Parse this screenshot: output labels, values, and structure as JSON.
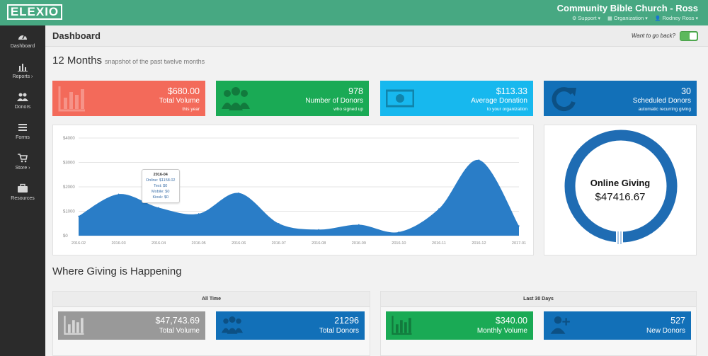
{
  "topbar": {
    "logo": "ELEXIO",
    "org_name": "Community Bible Church - Ross",
    "links": [
      {
        "label": "Support",
        "icon": "gear-icon"
      },
      {
        "label": "Organization",
        "icon": "building-icon"
      },
      {
        "label": "Rodney Ross",
        "icon": "user-icon"
      }
    ]
  },
  "sidebar": {
    "items": [
      {
        "label": "Dashboard",
        "icon": "dashboard-icon"
      },
      {
        "label": "Reports",
        "icon": "bar-chart-icon"
      },
      {
        "label": "Donors",
        "icon": "people-icon"
      },
      {
        "label": "Forms",
        "icon": "list-icon"
      },
      {
        "label": "Store",
        "icon": "cart-icon"
      },
      {
        "label": "Resources",
        "icon": "briefcase-icon"
      }
    ]
  },
  "header": {
    "title": "Dashboard",
    "goback": "Want to go back?"
  },
  "snapshot": {
    "title": "12 Months",
    "subtitle": "snapshot of the past twelve months",
    "cards": [
      {
        "value": "$680.00",
        "label": "Total Volume",
        "note": "this year",
        "color": "#f36a5a",
        "icon": "bar-chart-icon"
      },
      {
        "value": "978",
        "label": "Number of Donors",
        "note": "who signed up",
        "color": "#1aaa55",
        "icon": "people-icon"
      },
      {
        "value": "$113.33",
        "label": "Average Donation",
        "note": "to your organization",
        "color": "#17b8ee",
        "icon": "money-icon"
      },
      {
        "value": "30",
        "label": "Scheduled Donors",
        "note": "automatic recurring giving",
        "color": "#1270b8",
        "icon": "refresh-icon"
      }
    ]
  },
  "chart_data": {
    "type": "area",
    "x": [
      "2016-02",
      "2016-03",
      "2016-04",
      "2016-05",
      "2016-06",
      "2016-07",
      "2016-08",
      "2016-09",
      "2016-10",
      "2016-11",
      "2016-12",
      "2017-01"
    ],
    "series": [
      {
        "values": [
          800,
          1700,
          1150,
          900,
          1750,
          500,
          250,
          450,
          150,
          1100,
          3100,
          400
        ]
      }
    ],
    "y_ticks": [
      "$0",
      "$1000",
      "$2000",
      "$3000",
      "$4000"
    ],
    "ylim": [
      0,
      4000
    ],
    "grid": true,
    "color": "#2a7dc7"
  },
  "tooltip": {
    "title": "2016-04",
    "lines": [
      "Online: $1158.02",
      "Text: $0",
      "Mobile: $0",
      "Kiosk: $0"
    ]
  },
  "donut": {
    "title": "Online Giving",
    "value": "$47416.67",
    "color": "#1f6cb3"
  },
  "where": {
    "title": "Where Giving is Happening",
    "panels": [
      {
        "title": "All Time",
        "cards": [
          {
            "value": "$47,743.69",
            "label": "Total Volume",
            "color": "#999999",
            "icon": "bar-chart-icon"
          },
          {
            "value": "21296",
            "label": "Total Donors",
            "color": "#1270b8",
            "icon": "people-icon"
          }
        ]
      },
      {
        "title": "Last 30 Days",
        "cards": [
          {
            "value": "$340.00",
            "label": "Monthly Volume",
            "color": "#1aaa55",
            "icon": "bar-chart-icon"
          },
          {
            "value": "527",
            "label": "New Donors",
            "color": "#1270b8",
            "icon": "add-user-icon"
          }
        ]
      }
    ]
  }
}
